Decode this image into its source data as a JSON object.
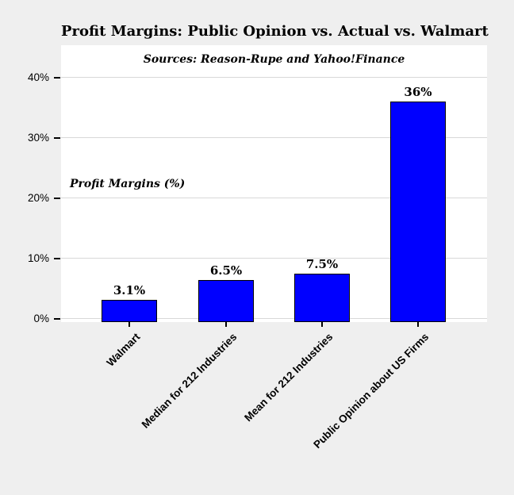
{
  "chart_data": {
    "type": "bar",
    "title": "Profit Margins: Public Opinion vs. Actual vs. Walmart",
    "subtitle": "Sources: Reason-Rupe and Yahoo!Finance",
    "ylabel": "Profit Margins (%)",
    "categories": [
      "Walmart",
      "Median for 212 Industries",
      "Mean for 212 Industries",
      "Public Opinion about US Firms"
    ],
    "values": [
      3.1,
      6.5,
      7.5,
      36
    ],
    "value_labels": [
      "3.1%",
      "6.5%",
      "7.5%",
      "36%"
    ],
    "ylim": [
      0,
      40
    ],
    "yticks": [
      0,
      10,
      20,
      30,
      40
    ],
    "ytick_labels": [
      "0%",
      "10%",
      "20%",
      "30%",
      "40%"
    ],
    "grid": true,
    "legend": "none",
    "colors": {
      "bar_fill": "#0000FF",
      "bar_border": "#000000",
      "background": "#EFEFEF",
      "plot_background": "#FFFFFF",
      "gridline": "#D8D8D8",
      "text": "#000000"
    }
  }
}
